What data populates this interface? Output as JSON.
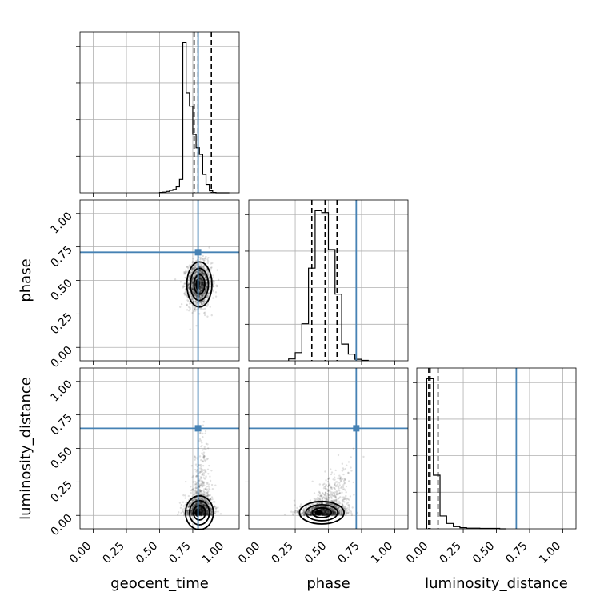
{
  "parameters": [
    "geocent_time",
    "phase",
    "luminosity_distance"
  ],
  "ticks": [
    0.0,
    0.25,
    0.5,
    0.75,
    1.0
  ],
  "tick_labels": [
    "0.00",
    "0.25",
    "0.50",
    "0.75",
    "1.00"
  ],
  "colors": {
    "truth": "#4682b4",
    "grid": "#b0b0b0"
  },
  "chart_data": {
    "type": "corner",
    "axis_range": [
      -0.1,
      1.1
    ],
    "grid": true,
    "truths": {
      "geocent_time": 0.79,
      "phase": 0.71,
      "luminosity_distance": 0.65
    },
    "histograms": [
      {
        "param": "geocent_time",
        "bin_edges": [
          0.5,
          0.525,
          0.55,
          0.575,
          0.6,
          0.625,
          0.65,
          0.675,
          0.7,
          0.725,
          0.75,
          0.775,
          0.8,
          0.825,
          0.85,
          0.875,
          0.9,
          0.925,
          0.95,
          0.975,
          1.0,
          1.025
        ],
        "counts": [
          1,
          2,
          4,
          7,
          10,
          18,
          40,
          450,
          300,
          260,
          175,
          135,
          115,
          55,
          25,
          6,
          1,
          0,
          0,
          0,
          0
        ],
        "quantiles": [
          0.76,
          0.79,
          0.89
        ]
      },
      {
        "param": "phase",
        "bin_edges": [
          0.2,
          0.25,
          0.3,
          0.35,
          0.4,
          0.45,
          0.5,
          0.55,
          0.6,
          0.65,
          0.7,
          0.75,
          0.8
        ],
        "counts": [
          5,
          22,
          100,
          250,
          405,
          400,
          300,
          180,
          45,
          18,
          4,
          1
        ],
        "quantiles": [
          0.375,
          0.475,
          0.565
        ]
      },
      {
        "param": "luminosity_distance",
        "bin_edges": [
          -0.025,
          0.025,
          0.075,
          0.125,
          0.175,
          0.225,
          0.275,
          0.325,
          0.375,
          0.425,
          0.475,
          0.525,
          0.575
        ],
        "counts": [
          700,
          250,
          60,
          25,
          10,
          5,
          3,
          3,
          2,
          2,
          2,
          0
        ],
        "quantiles": [
          -0.01,
          0.0,
          0.06
        ]
      }
    ],
    "density_2d": [
      {
        "x": "geocent_time",
        "y": "phase",
        "center": [
          0.8,
          0.47
        ],
        "spread": [
          0.045,
          0.08
        ]
      },
      {
        "x": "geocent_time",
        "y": "luminosity_distance",
        "center": [
          0.8,
          0.02
        ],
        "spread": [
          0.05,
          0.06
        ]
      },
      {
        "x": "phase",
        "y": "luminosity_distance",
        "center": [
          0.45,
          0.02
        ],
        "spread": [
          0.08,
          0.04
        ]
      }
    ]
  }
}
